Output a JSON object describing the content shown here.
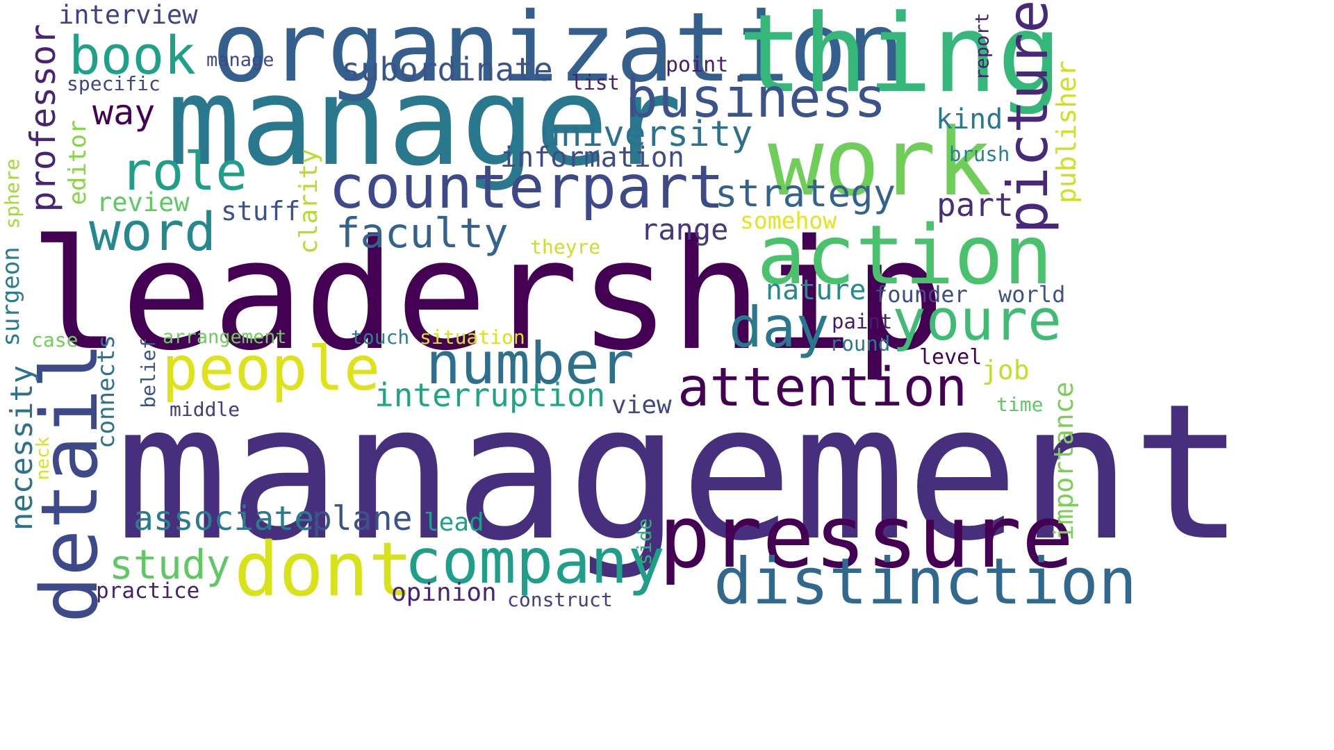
{
  "words": [
    {
      "text": "management",
      "color": "#472f7d"
    },
    {
      "text": "leadership",
      "color": "#440154"
    },
    {
      "text": "manager",
      "color": "#2a788e"
    },
    {
      "text": "organization",
      "color": "#355f8d"
    },
    {
      "text": "thing",
      "color": "#35b779"
    },
    {
      "text": "work",
      "color": "#6ece58"
    },
    {
      "text": "action",
      "color": "#4ac16d"
    },
    {
      "text": "pressure",
      "color": "#440154"
    },
    {
      "text": "distinction",
      "color": "#31688e"
    },
    {
      "text": "company",
      "color": "#1f9e89"
    },
    {
      "text": "dont",
      "color": "#d8e219"
    },
    {
      "text": "detail",
      "color": "#3e4989"
    },
    {
      "text": "counterpart",
      "color": "#3e4989"
    },
    {
      "text": "people",
      "color": "#dde318"
    },
    {
      "text": "number",
      "color": "#2d708e"
    },
    {
      "text": "attention",
      "color": "#440154"
    },
    {
      "text": "business",
      "color": "#3b528b"
    },
    {
      "text": "picture",
      "color": "#482878"
    },
    {
      "text": "youre",
      "color": "#3fbc73"
    },
    {
      "text": "day",
      "color": "#2a788e"
    },
    {
      "text": "role",
      "color": "#1f9e89"
    },
    {
      "text": "word",
      "color": "#23898e"
    },
    {
      "text": "book",
      "color": "#1fa187"
    },
    {
      "text": "faculty",
      "color": "#33638d"
    },
    {
      "text": "strategy",
      "color": "#33638d"
    },
    {
      "text": "university",
      "color": "#2c728e"
    },
    {
      "text": "professor",
      "color": "#482475"
    },
    {
      "text": "study",
      "color": "#5ec962"
    },
    {
      "text": "associate",
      "color": "#287c8e"
    },
    {
      "text": "plane",
      "color": "#3b528b"
    },
    {
      "text": "interruption",
      "color": "#20a486"
    },
    {
      "text": "subordinate",
      "color": "#3b528b"
    },
    {
      "text": "information",
      "color": "#3e4a89"
    },
    {
      "text": "range",
      "color": "#453781"
    },
    {
      "text": "nature",
      "color": "#238a8d"
    },
    {
      "text": "necessity",
      "color": "#2c718e"
    },
    {
      "text": "way",
      "color": "#440154"
    },
    {
      "text": "part",
      "color": "#472d7b"
    },
    {
      "text": "kind",
      "color": "#2a788e"
    },
    {
      "text": "interview",
      "color": "#424086"
    },
    {
      "text": "publisher",
      "color": "#d0e11c"
    },
    {
      "text": "importance",
      "color": "#7ad151"
    },
    {
      "text": "editor",
      "color": "#86d549"
    },
    {
      "text": "review",
      "color": "#5ec962"
    },
    {
      "text": "stuff",
      "color": "#3b528b"
    },
    {
      "text": "clarity",
      "color": "#b5de2b"
    },
    {
      "text": "surgeon",
      "color": "#287d8e"
    },
    {
      "text": "connects",
      "color": "#2c728e"
    },
    {
      "text": "somehow",
      "color": "#e5e419"
    },
    {
      "text": "lead",
      "color": "#1fa088"
    },
    {
      "text": "opinion",
      "color": "#482475"
    },
    {
      "text": "practice",
      "color": "#481f70"
    },
    {
      "text": "job",
      "color": "#c2df23"
    },
    {
      "text": "view",
      "color": "#3f4788"
    },
    {
      "text": "founder",
      "color": "#3e4a89"
    },
    {
      "text": "world",
      "color": "#3b528b"
    },
    {
      "text": "paint",
      "color": "#481b6d"
    },
    {
      "text": "round",
      "color": "#2a788e"
    },
    {
      "text": "level",
      "color": "#440154"
    },
    {
      "text": "point",
      "color": "#481d6f"
    },
    {
      "text": "list",
      "color": "#482173"
    },
    {
      "text": "brush",
      "color": "#27808e"
    },
    {
      "text": "report",
      "color": "#482173"
    },
    {
      "text": "specific",
      "color": "#414487"
    },
    {
      "text": "manage",
      "color": "#3e4989"
    },
    {
      "text": "sphere",
      "color": "#a2da37"
    },
    {
      "text": "case",
      "color": "#6ece58"
    },
    {
      "text": "arrangement",
      "color": "#6ccd5a"
    },
    {
      "text": "touch",
      "color": "#27808e"
    },
    {
      "text": "situation",
      "color": "#dae319"
    },
    {
      "text": "theyre",
      "color": "#cae11f"
    },
    {
      "text": "belief",
      "color": "#3b528b"
    },
    {
      "text": "middle",
      "color": "#443983"
    },
    {
      "text": "neck",
      "color": "#dae319"
    },
    {
      "text": "time",
      "color": "#5ec962"
    },
    {
      "text": "side",
      "color": "#2db27d"
    },
    {
      "text": "construct",
      "color": "#433e85"
    }
  ]
}
